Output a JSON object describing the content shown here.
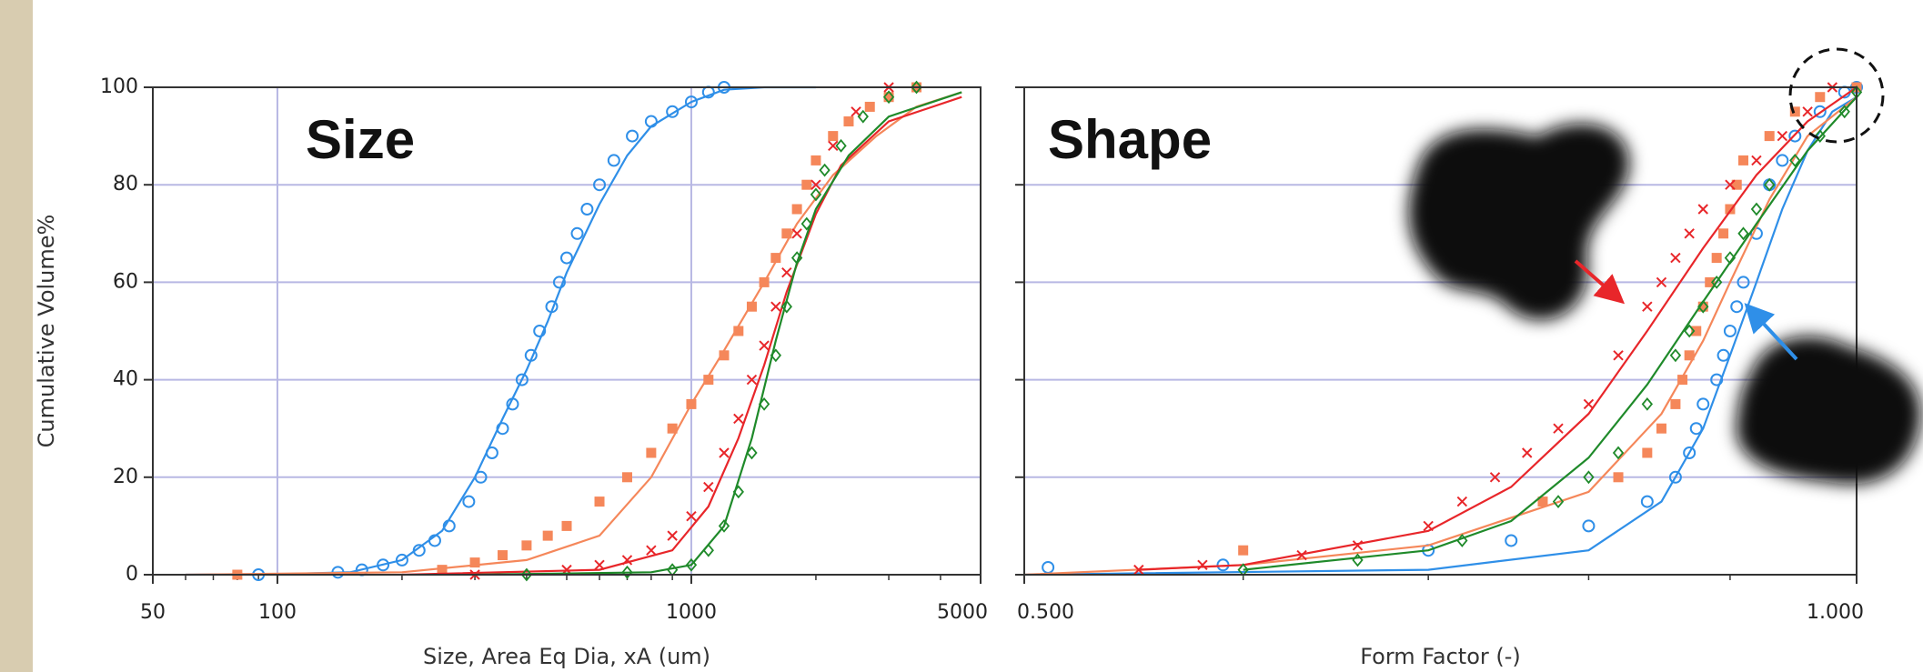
{
  "chart_data": [
    {
      "type": "scatter",
      "annotation": "Size",
      "xlabel": "Size, Area Eq Dia, xA (um)",
      "ylabel": "Cumulative Volume%",
      "xscale": "log",
      "xlim": [
        50,
        5000
      ],
      "xticks": [
        50,
        100,
        1000,
        5000
      ],
      "xminor_ticks": [
        60,
        70,
        80,
        90,
        200,
        300,
        400,
        500,
        600,
        700,
        800,
        900,
        2000,
        3000,
        4000
      ],
      "ylim": [
        0,
        100
      ],
      "yticks": [
        0,
        20,
        40,
        60,
        80,
        100
      ],
      "ytick_labels": true,
      "grid": true,
      "xgrid": [
        100,
        1000
      ],
      "grid_color": "#b8b8e4",
      "series": [
        {
          "style": "line",
          "color": "#2f8fe8",
          "marker": "none",
          "x": [
            60,
            100,
            150,
            200,
            250,
            300,
            350,
            400,
            450,
            500,
            600,
            700,
            800,
            1000,
            1200,
            1500,
            2000
          ],
          "values": [
            0,
            0.1,
            0.5,
            3,
            9,
            20,
            32,
            42,
            52,
            62,
            76,
            86,
            92,
            97,
            99.5,
            100,
            100
          ]
        },
        {
          "style": "markers",
          "color": "#2f8fe8",
          "marker": "circle",
          "x": [
            90,
            140,
            160,
            180,
            200,
            220,
            240,
            260,
            290,
            310,
            330,
            350,
            370,
            390,
            410,
            430,
            460,
            480,
            500,
            530,
            560,
            600,
            650,
            720,
            800,
            900,
            1000,
            1100,
            1200
          ],
          "values": [
            0,
            0.5,
            1,
            2,
            3,
            5,
            7,
            10,
            15,
            20,
            25,
            30,
            35,
            40,
            45,
            50,
            55,
            60,
            65,
            70,
            75,
            80,
            85,
            90,
            93,
            95,
            97,
            99,
            100
          ]
        },
        {
          "style": "line",
          "color": "#f5875a",
          "marker": "none",
          "x": [
            60,
            200,
            400,
            600,
            800,
            1000,
            1200,
            1500,
            1800,
            2200,
            2800,
            3500,
            4500
          ],
          "values": [
            0,
            0.5,
            3,
            8,
            20,
            35,
            46,
            60,
            72,
            82,
            90,
            96,
            99
          ]
        },
        {
          "style": "markers",
          "color": "#f5875a",
          "marker": "square",
          "x": [
            80,
            250,
            300,
            350,
            400,
            450,
            500,
            600,
            700,
            800,
            900,
            1000,
            1100,
            1200,
            1300,
            1400,
            1500,
            1600,
            1700,
            1800,
            1900,
            2000,
            2200,
            2400,
            2700,
            3000,
            3500
          ],
          "values": [
            0,
            1,
            2.5,
            4,
            6,
            8,
            10,
            15,
            20,
            25,
            30,
            35,
            40,
            45,
            50,
            55,
            60,
            65,
            70,
            75,
            80,
            85,
            90,
            93,
            96,
            98,
            100
          ]
        },
        {
          "style": "line",
          "color": "#e8262a",
          "marker": "none",
          "x": [
            200,
            600,
            900,
            1100,
            1300,
            1500,
            1700,
            2000,
            2300,
            3000,
            4500
          ],
          "values": [
            0,
            1,
            5,
            14,
            28,
            43,
            58,
            74,
            84,
            93,
            98
          ]
        },
        {
          "style": "markers",
          "color": "#e8262a",
          "marker": "x",
          "x": [
            300,
            500,
            600,
            700,
            800,
            900,
            1000,
            1100,
            1200,
            1300,
            1400,
            1500,
            1600,
            1700,
            1800,
            2000,
            2200,
            2500,
            3000
          ],
          "values": [
            0,
            1,
            2,
            3,
            5,
            8,
            12,
            18,
            25,
            32,
            40,
            47,
            55,
            62,
            70,
            80,
            88,
            95,
            100
          ]
        },
        {
          "style": "line",
          "color": "#1f8a2a",
          "marker": "none",
          "x": [
            300,
            800,
            1000,
            1200,
            1400,
            1600,
            1800,
            2000,
            2400,
            3000,
            4500
          ],
          "values": [
            0,
            0.5,
            2,
            10,
            28,
            48,
            64,
            75,
            86,
            94,
            99
          ]
        },
        {
          "style": "markers",
          "color": "#1f8a2a",
          "marker": "diamond",
          "x": [
            400,
            700,
            900,
            1000,
            1100,
            1200,
            1300,
            1400,
            1500,
            1600,
            1700,
            1800,
            1900,
            2000,
            2100,
            2300,
            2600,
            3000,
            3500
          ],
          "values": [
            0,
            0.5,
            1,
            2,
            5,
            10,
            17,
            25,
            35,
            45,
            55,
            65,
            72,
            78,
            83,
            88,
            94,
            98,
            100
          ]
        }
      ]
    },
    {
      "type": "scatter",
      "annotation": "Shape",
      "xlabel": "Form Factor (-)",
      "xscale": "log",
      "xlim": [
        0.5,
        1
      ],
      "xticks": [
        {
          "value": 0.5,
          "label": "0.500"
        },
        {
          "value": 1,
          "label": "1.000"
        }
      ],
      "xminor_ticks": [
        0.6,
        0.7,
        0.8,
        0.9
      ],
      "ylim": [
        0,
        100
      ],
      "yticks": [
        0,
        20,
        40,
        60,
        80,
        100
      ],
      "ytick_labels": false,
      "grid": true,
      "xgrid": [],
      "grid_color": "#b8b8e4",
      "series": [
        {
          "style": "line",
          "color": "#2f8fe8",
          "marker": "none",
          "x": [
            0.5,
            0.7,
            0.8,
            0.85,
            0.88,
            0.9,
            0.92,
            0.94,
            0.96,
            0.98,
            1
          ],
          "values": [
            0,
            1,
            5,
            15,
            30,
            45,
            60,
            75,
            87,
            95,
            98
          ]
        },
        {
          "style": "markers",
          "color": "#2f8fe8",
          "marker": "circle",
          "x": [
            0.51,
            0.59,
            0.7,
            0.75,
            0.8,
            0.84,
            0.86,
            0.87,
            0.875,
            0.88,
            0.89,
            0.895,
            0.9,
            0.905,
            0.91,
            0.92,
            0.93,
            0.94,
            0.95,
            0.97,
            0.99,
            1
          ],
          "values": [
            1.5,
            2,
            5,
            7,
            10,
            15,
            20,
            25,
            30,
            35,
            40,
            45,
            50,
            55,
            60,
            70,
            80,
            85,
            90,
            95,
            99,
            100
          ]
        },
        {
          "style": "line",
          "color": "#f5875a",
          "marker": "none",
          "x": [
            0.5,
            0.6,
            0.7,
            0.8,
            0.85,
            0.88,
            0.9,
            0.93,
            0.96,
            1
          ],
          "values": [
            0,
            2,
            6,
            17,
            33,
            48,
            60,
            77,
            90,
            98
          ]
        },
        {
          "style": "markers",
          "color": "#f5875a",
          "marker": "square",
          "x": [
            0.6,
            0.77,
            0.82,
            0.84,
            0.85,
            0.86,
            0.865,
            0.87,
            0.875,
            0.88,
            0.885,
            0.89,
            0.895,
            0.9,
            0.905,
            0.91,
            0.93,
            0.95,
            0.97,
            1
          ],
          "values": [
            5,
            15,
            20,
            25,
            30,
            35,
            40,
            45,
            50,
            55,
            60,
            65,
            70,
            75,
            80,
            85,
            90,
            95,
            98,
            100
          ]
        },
        {
          "style": "line",
          "color": "#e8262a",
          "marker": "none",
          "x": [
            0.55,
            0.6,
            0.7,
            0.75,
            0.8,
            0.84,
            0.88,
            0.92,
            0.96,
            1
          ],
          "values": [
            1,
            2,
            9,
            18,
            33,
            50,
            67,
            82,
            93,
            100
          ]
        },
        {
          "style": "markers",
          "color": "#e8262a",
          "marker": "x",
          "x": [
            0.55,
            0.58,
            0.63,
            0.66,
            0.7,
            0.72,
            0.74,
            0.76,
            0.78,
            0.8,
            0.82,
            0.84,
            0.85,
            0.86,
            0.87,
            0.88,
            0.9,
            0.92,
            0.94,
            0.96,
            0.98
          ],
          "values": [
            1,
            2,
            4,
            6,
            10,
            15,
            20,
            25,
            30,
            35,
            45,
            55,
            60,
            65,
            70,
            75,
            80,
            85,
            90,
            95,
            100
          ]
        },
        {
          "style": "line",
          "color": "#1f8a2a",
          "marker": "none",
          "x": [
            0.6,
            0.7,
            0.75,
            0.8,
            0.84,
            0.88,
            0.92,
            0.96,
            1
          ],
          "values": [
            1,
            5,
            11,
            24,
            39,
            56,
            72,
            87,
            98
          ]
        },
        {
          "style": "markers",
          "color": "#1f8a2a",
          "marker": "diamond",
          "x": [
            0.6,
            0.66,
            0.72,
            0.78,
            0.8,
            0.82,
            0.84,
            0.86,
            0.87,
            0.88,
            0.89,
            0.9,
            0.91,
            0.92,
            0.93,
            0.95,
            0.97,
            0.99,
            1
          ],
          "values": [
            1,
            3,
            7,
            15,
            20,
            25,
            35,
            45,
            50,
            55,
            60,
            65,
            70,
            75,
            80,
            85,
            90,
            95,
            99
          ]
        }
      ]
    }
  ]
}
